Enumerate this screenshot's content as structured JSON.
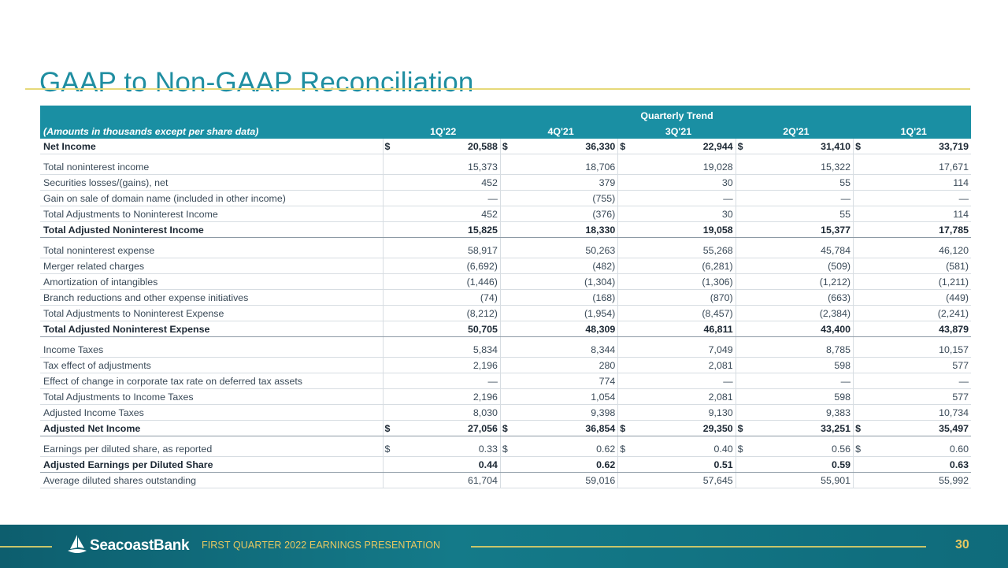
{
  "title": "GAAP to Non-GAAP Reconciliation",
  "table": {
    "trend_label": "Quarterly Trend",
    "units_label": "(Amounts in thousands except per share data)",
    "periods": [
      "1Q'22",
      "4Q'21",
      "3Q'21",
      "2Q'21",
      "1Q'21"
    ],
    "currency_symbol": "$",
    "rows": [
      {
        "label": "Net Income",
        "values": [
          "20,588",
          "36,330",
          "22,944",
          "31,410",
          "33,719"
        ],
        "dollar": true,
        "bold": true,
        "total": false,
        "gap": false
      },
      {
        "label": "Total noninterest income",
        "values": [
          "15,373",
          "18,706",
          "19,028",
          "15,322",
          "17,671"
        ],
        "dollar": false,
        "bold": false,
        "total": false,
        "gap": true
      },
      {
        "label": "Securities losses/(gains), net",
        "values": [
          "452",
          "379",
          "30",
          "55",
          "114"
        ],
        "dollar": false,
        "bold": false,
        "total": false,
        "gap": false
      },
      {
        "label": "Gain on sale of domain name (included in other income)",
        "values": [
          "—",
          "(755)",
          "—",
          "—",
          "—"
        ],
        "dollar": false,
        "bold": false,
        "total": false,
        "gap": false
      },
      {
        "label": "Total Adjustments to Noninterest Income",
        "values": [
          "452",
          "(376)",
          "30",
          "55",
          "114"
        ],
        "dollar": false,
        "bold": false,
        "total": false,
        "gap": false
      },
      {
        "label": "Total Adjusted Noninterest Income",
        "values": [
          "15,825",
          "18,330",
          "19,058",
          "15,377",
          "17,785"
        ],
        "dollar": false,
        "bold": true,
        "total": true,
        "gap": false
      },
      {
        "label": "Total noninterest expense",
        "values": [
          "58,917",
          "50,263",
          "55,268",
          "45,784",
          "46,120"
        ],
        "dollar": false,
        "bold": false,
        "total": false,
        "gap": true
      },
      {
        "label": "Merger related charges",
        "values": [
          "(6,692)",
          "(482)",
          "(6,281)",
          "(509)",
          "(581)"
        ],
        "dollar": false,
        "bold": false,
        "total": false,
        "gap": false
      },
      {
        "label": "Amortization of intangibles",
        "values": [
          "(1,446)",
          "(1,304)",
          "(1,306)",
          "(1,212)",
          "(1,211)"
        ],
        "dollar": false,
        "bold": false,
        "total": false,
        "gap": false
      },
      {
        "label": "Branch reductions and other expense initiatives",
        "values": [
          "(74)",
          "(168)",
          "(870)",
          "(663)",
          "(449)"
        ],
        "dollar": false,
        "bold": false,
        "total": false,
        "gap": false
      },
      {
        "label": "Total Adjustments to Noninterest Expense",
        "values": [
          "(8,212)",
          "(1,954)",
          "(8,457)",
          "(2,384)",
          "(2,241)"
        ],
        "dollar": false,
        "bold": false,
        "total": false,
        "gap": false
      },
      {
        "label": "Total Adjusted Noninterest Expense",
        "values": [
          "50,705",
          "48,309",
          "46,811",
          "43,400",
          "43,879"
        ],
        "dollar": false,
        "bold": true,
        "total": true,
        "gap": false
      },
      {
        "label": "Income Taxes",
        "values": [
          "5,834",
          "8,344",
          "7,049",
          "8,785",
          "10,157"
        ],
        "dollar": false,
        "bold": false,
        "total": false,
        "gap": true
      },
      {
        "label": "Tax effect of adjustments",
        "values": [
          "2,196",
          "280",
          "2,081",
          "598",
          "577"
        ],
        "dollar": false,
        "bold": false,
        "total": false,
        "gap": false
      },
      {
        "label": "Effect of change in corporate tax rate on deferred tax assets",
        "values": [
          "—",
          "774",
          "—",
          "—",
          "—"
        ],
        "dollar": false,
        "bold": false,
        "total": false,
        "gap": false
      },
      {
        "label": "Total Adjustments to Income Taxes",
        "values": [
          "2,196",
          "1,054",
          "2,081",
          "598",
          "577"
        ],
        "dollar": false,
        "bold": false,
        "total": false,
        "gap": false
      },
      {
        "label": "Adjusted Income Taxes",
        "values": [
          "8,030",
          "9,398",
          "9,130",
          "9,383",
          "10,734"
        ],
        "dollar": false,
        "bold": false,
        "total": false,
        "gap": false
      },
      {
        "label": "Adjusted Net Income",
        "values": [
          "27,056",
          "36,854",
          "29,350",
          "33,251",
          "35,497"
        ],
        "dollar": true,
        "bold": true,
        "total": true,
        "gap": false
      },
      {
        "label": "Earnings per diluted share, as reported",
        "values": [
          "0.33",
          "0.62",
          "0.40",
          "0.56",
          "0.60"
        ],
        "dollar": true,
        "bold": false,
        "total": false,
        "gap": true
      },
      {
        "label": "Adjusted Earnings per Diluted Share",
        "values": [
          "0.44",
          "0.62",
          "0.51",
          "0.59",
          "0.63"
        ],
        "dollar": false,
        "bold": true,
        "total": true,
        "gap": false
      },
      {
        "label": "Average diluted shares outstanding",
        "values": [
          "61,704",
          "59,016",
          "57,645",
          "55,901",
          "55,992"
        ],
        "dollar": false,
        "bold": false,
        "total": false,
        "gap": false
      }
    ]
  },
  "footer": {
    "brand_logo_text": "SeacoastBank",
    "presentation_label": "FIRST QUARTER 2022 EARNINGS PRESENTATION",
    "page_number": "30",
    "logo_icon": "sail-icon",
    "accent_color": "#1a8fa3",
    "footer_color": "#11697a",
    "gold_color": "#e8c860"
  }
}
